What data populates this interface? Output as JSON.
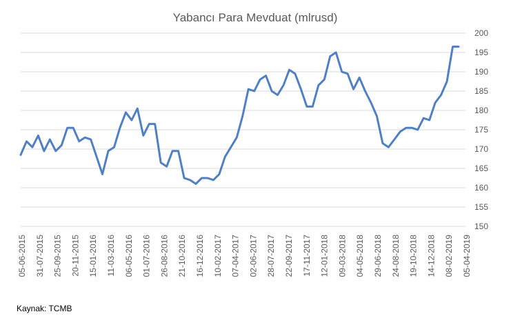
{
  "chart_data": {
    "type": "line",
    "title": "Yabancı Para Mevduat (mlrusd)",
    "source": "Kaynak: TCMB",
    "ylim": [
      150,
      200
    ],
    "y_ticks": [
      "150",
      "155",
      "160",
      "165",
      "170",
      "175",
      "180",
      "185",
      "190",
      "195",
      "200"
    ],
    "y_axis_side": "right",
    "grid": "horizontal",
    "x_ticks": [
      "05-06-2015",
      "31-07-2015",
      "25-09-2015",
      "20-11-2015",
      "15-01-2016",
      "11-03-2016",
      "06-05-2016",
      "01-07-2016",
      "26-08-2016",
      "21-10-2016",
      "16-12-2016",
      "10-02-2017",
      "07-04-2017",
      "02-06-2017",
      "28-07-2017",
      "22-09-2017",
      "17-11-2017",
      "12-01-2018",
      "09-03-2018",
      "04-05-2018",
      "29-06-2018",
      "24-08-2018",
      "19-10-2018",
      "14-12-2018",
      "08-02-2019",
      "05-04-2019"
    ],
    "series": [
      {
        "color": "#4f7fc4",
        "values": [
          168.5,
          172.0,
          170.5,
          173.5,
          169.5,
          172.5,
          169.5,
          171.0,
          175.5,
          175.5,
          172.0,
          173.0,
          172.5,
          168.0,
          163.5,
          169.5,
          170.5,
          175.5,
          179.5,
          177.5,
          180.5,
          173.5,
          176.5,
          176.5,
          166.5,
          165.5,
          169.5,
          169.5,
          162.5,
          162.0,
          161.0,
          162.5,
          162.5,
          162.0,
          163.5,
          168.0,
          170.5,
          173.0,
          178.5,
          185.5,
          185.0,
          188.0,
          189.0,
          185.0,
          184.0,
          186.5,
          190.5,
          189.5,
          185.5,
          181.0,
          181.0,
          186.5,
          188.0,
          194.0,
          195.0,
          190.0,
          189.5,
          185.5,
          188.5,
          185.0,
          182.0,
          178.5,
          171.5,
          170.5,
          172.5,
          174.5,
          175.5,
          175.5,
          175.0,
          178.0,
          177.5,
          182.0,
          184.0,
          187.5,
          196.5,
          196.5
        ]
      }
    ]
  }
}
